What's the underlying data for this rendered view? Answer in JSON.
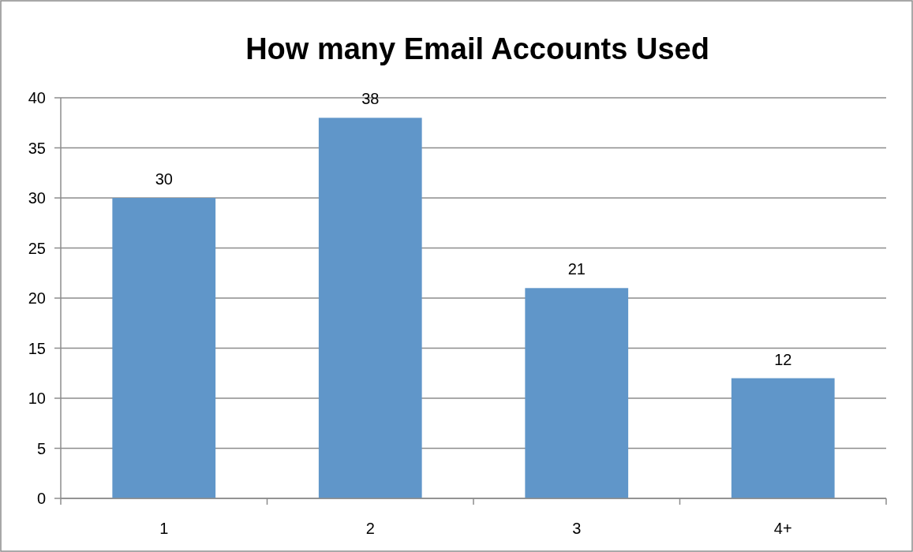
{
  "chart_data": {
    "type": "bar",
    "title": "How many Email Accounts Used",
    "categories": [
      "1",
      "2",
      "3",
      "4+"
    ],
    "values": [
      30,
      38,
      21,
      12
    ],
    "color": "#6096c9",
    "ylim": [
      0,
      40
    ],
    "yticks": [
      0,
      5,
      10,
      15,
      20,
      25,
      30,
      35,
      40
    ],
    "grid": "y",
    "data_labels": true
  }
}
